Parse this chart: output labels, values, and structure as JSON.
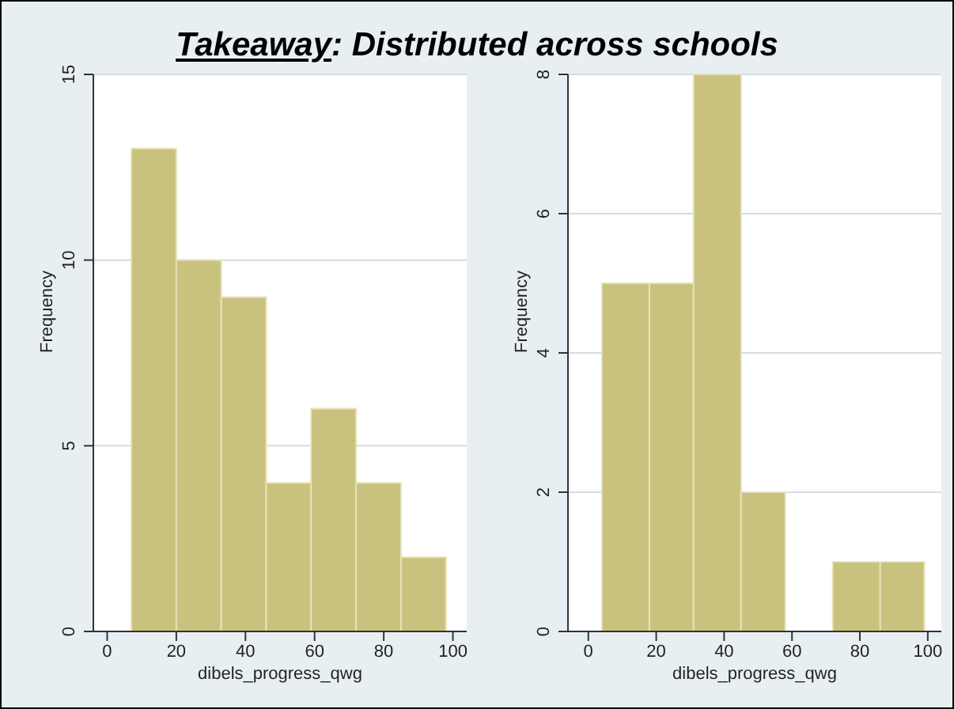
{
  "chart_data": [
    {
      "type": "histogram",
      "title": "Takeaway: Distributed across schools",
      "xlabel": "dibels_progress_qwg",
      "ylabel": "Frequency",
      "color": "#c9c27f",
      "grid": "y",
      "bins": [
        7,
        20,
        33,
        46,
        59,
        72,
        85,
        98
      ],
      "values": [
        13,
        10,
        9,
        4,
        6,
        4,
        2
      ],
      "xlim": [
        -4,
        104
      ],
      "xticks": [
        0,
        20,
        40,
        60,
        80,
        100
      ],
      "ylim": [
        0,
        15
      ],
      "yticks": [
        0,
        5,
        10,
        15
      ]
    },
    {
      "type": "histogram",
      "xlabel": "dibels_progress_qwg",
      "ylabel": "Frequency",
      "color": "#c9c27f",
      "grid": "y",
      "bins": [
        4,
        18,
        31,
        45,
        58,
        72,
        86,
        99
      ],
      "values": [
        5,
        5,
        8,
        2,
        0,
        1,
        1
      ],
      "xlim": [
        -6,
        104
      ],
      "xticks": [
        0,
        20,
        40,
        60,
        80,
        100
      ],
      "ylim": [
        0,
        8
      ],
      "yticks": [
        0,
        2,
        4,
        6,
        8
      ]
    }
  ]
}
